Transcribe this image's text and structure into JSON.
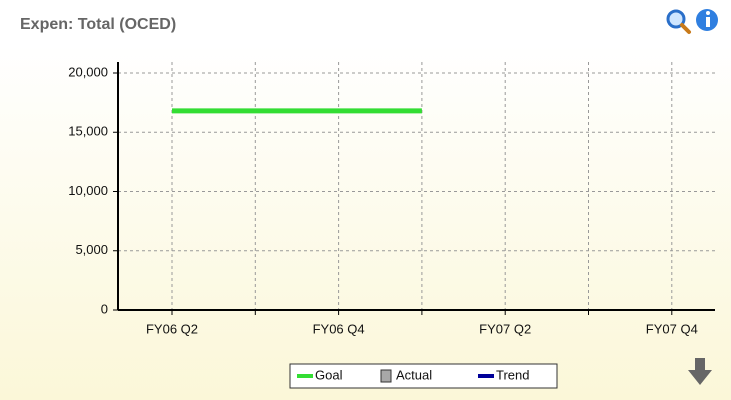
{
  "chart_data": {
    "type": "line",
    "title": "Expen: Total (OCED)",
    "categories": [
      "FY06 Q2",
      null,
      "FY06 Q4",
      null,
      "FY07 Q2",
      null,
      "FY07 Q4"
    ],
    "series": [
      {
        "name": "Goal",
        "color": "#33dd33",
        "style": "line",
        "values": [
          16800,
          16800,
          16800,
          16800,
          null,
          null,
          null
        ]
      },
      {
        "name": "Actual",
        "color": "#a8a8a8",
        "style": "bar",
        "values": [
          null,
          null,
          null,
          null,
          null,
          null,
          null
        ]
      },
      {
        "name": "Trend",
        "color": "#000099",
        "style": "line",
        "values": [
          null,
          null,
          null,
          null,
          null,
          null,
          null
        ]
      }
    ],
    "ylim": [
      0,
      20000
    ],
    "yticks": [
      0,
      {
        "value": 5000,
        "label": "5,000"
      },
      {
        "value": 10000,
        "label": "10,000"
      },
      {
        "value": 15000,
        "label": "15,000"
      },
      {
        "value": 20000,
        "label": "20,000"
      }
    ],
    "grid": true,
    "legend": "bottom"
  }
}
